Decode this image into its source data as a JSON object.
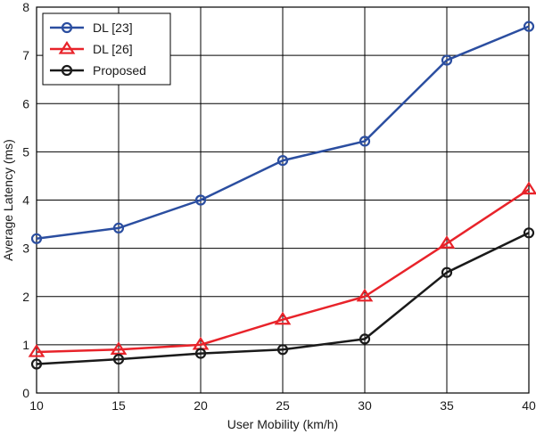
{
  "chart_data": {
    "type": "line",
    "title": "",
    "xlabel": "User Mobility (km/h)",
    "ylabel": "Average Latency (ms)",
    "x": [
      10,
      15,
      20,
      25,
      30,
      35,
      40
    ],
    "xlim": [
      10,
      40
    ],
    "ylim": [
      0,
      8
    ],
    "xticks": [
      "10",
      "15",
      "20",
      "25",
      "30",
      "35",
      "40"
    ],
    "yticks": [
      "0",
      "1",
      "2",
      "3",
      "4",
      "5",
      "6",
      "7",
      "8"
    ],
    "grid": true,
    "legend_position": "top-left",
    "series": [
      {
        "name": "DL [23]",
        "color": "#2b4ea0",
        "marker": "circle",
        "values": [
          3.2,
          3.42,
          4.0,
          4.82,
          5.22,
          6.9,
          7.6
        ]
      },
      {
        "name": "DL [26]",
        "color": "#e8232a",
        "marker": "triangle",
        "values": [
          0.85,
          0.9,
          1.0,
          1.52,
          2.0,
          3.1,
          4.22
        ]
      },
      {
        "name": "Proposed",
        "color": "#1a1a1a",
        "marker": "circle",
        "values": [
          0.6,
          0.7,
          0.82,
          0.9,
          1.12,
          2.5,
          3.32
        ]
      }
    ]
  }
}
